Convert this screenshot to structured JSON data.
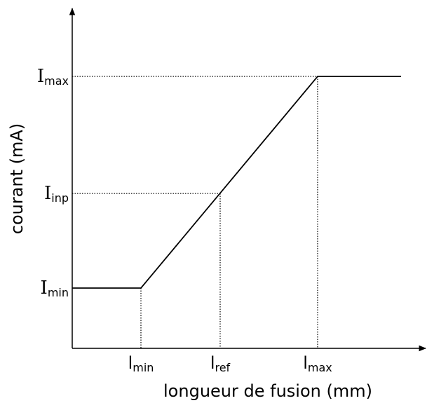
{
  "x_axis": {
    "label": "longueur de fusion (mm)",
    "ticks": [
      {
        "main": "l",
        "sub": "min"
      },
      {
        "main": "l",
        "sub": "ref"
      },
      {
        "main": "l",
        "sub": "max"
      }
    ]
  },
  "y_axis": {
    "label": "courant (mA)",
    "ticks": [
      {
        "main": "I",
        "sub": "min"
      },
      {
        "main": "I",
        "sub": "inp"
      },
      {
        "main": "I",
        "sub": "max"
      }
    ]
  }
}
